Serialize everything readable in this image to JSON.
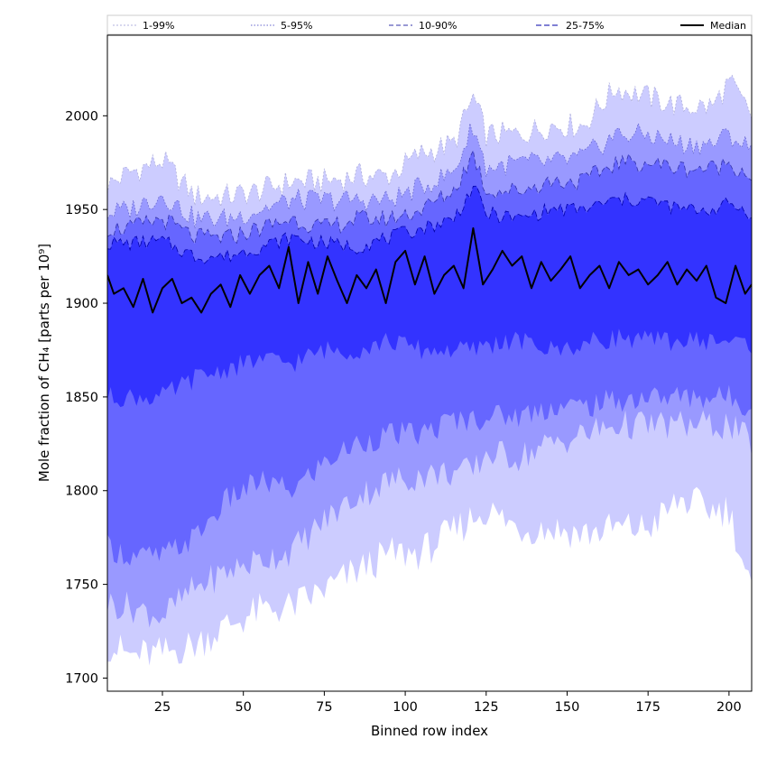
{
  "chart_data": {
    "type": "area",
    "title": "",
    "xlabel": "Binned row index",
    "ylabel": "Mole fraction of CH₄ [parts per 10⁹]",
    "xlim": [
      8,
      207
    ],
    "ylim": [
      1693,
      2043
    ],
    "x_ticks": [
      25,
      50,
      75,
      100,
      125,
      150,
      175,
      200
    ],
    "y_ticks": [
      1700,
      1750,
      1800,
      1850,
      1900,
      1950,
      2000
    ],
    "grid": false,
    "legend_position": "top, above plot",
    "x_knots": [
      8,
      15,
      25,
      35,
      45,
      55,
      65,
      75,
      85,
      95,
      105,
      115,
      121,
      125,
      135,
      145,
      155,
      165,
      175,
      185,
      195,
      200,
      207
    ],
    "bands": [
      {
        "name": "1-99%",
        "color": "#ccccff",
        "line_color": "#b0b0dd",
        "line_dash": "2,2",
        "lower": [
          1718,
          1712,
          1713,
          1718,
          1728,
          1736,
          1738,
          1747,
          1757,
          1766,
          1767,
          1778,
          1786,
          1790,
          1780,
          1780,
          1777,
          1780,
          1780,
          1795,
          1790,
          1790,
          1745
        ],
        "upper": [
          1963,
          1970,
          1976,
          1957,
          1957,
          1960,
          1965,
          1965,
          1968,
          1968,
          1980,
          1985,
          2010,
          1990,
          1990,
          1995,
          1995,
          2015,
          2010,
          2005,
          2005,
          2018,
          2000
        ]
      },
      {
        "name": "5-95%",
        "color": "#9999ff",
        "line_color": "#6666cc",
        "line_dash": "1.5,2",
        "lower": [
          1740,
          1738,
          1733,
          1748,
          1757,
          1763,
          1768,
          1784,
          1797,
          1805,
          1808,
          1810,
          1810,
          1820,
          1818,
          1825,
          1830,
          1835,
          1835,
          1835,
          1835,
          1835,
          1825
        ],
        "upper": [
          1948,
          1950,
          1958,
          1945,
          1945,
          1950,
          1955,
          1955,
          1955,
          1955,
          1962,
          1970,
          1995,
          1972,
          1975,
          1975,
          1978,
          1990,
          1990,
          1985,
          1985,
          1990,
          1982
        ]
      },
      {
        "name": "10-90%",
        "color": "#6666ff",
        "line_color": "#3333aa",
        "line_dash": "5,3",
        "lower": [
          1770,
          1765,
          1765,
          1775,
          1795,
          1805,
          1800,
          1815,
          1825,
          1830,
          1830,
          1838,
          1838,
          1840,
          1840,
          1845,
          1845,
          1848,
          1850,
          1850,
          1850,
          1850,
          1845
        ],
        "upper": [
          1940,
          1940,
          1945,
          1935,
          1935,
          1940,
          1945,
          1940,
          1945,
          1945,
          1950,
          1960,
          1980,
          1960,
          1960,
          1965,
          1965,
          1975,
          1975,
          1972,
          1972,
          1975,
          1968
        ]
      },
      {
        "name": "25-75%",
        "color": "#3333ff",
        "line_color": "#0000aa",
        "line_dash": "6,3",
        "lower": [
          1850,
          1850,
          1850,
          1860,
          1865,
          1870,
          1868,
          1875,
          1875,
          1880,
          1875,
          1875,
          1875,
          1878,
          1880,
          1875,
          1878,
          1882,
          1880,
          1880,
          1880,
          1880,
          1878
        ],
        "upper": [
          1932,
          1932,
          1933,
          1925,
          1925,
          1930,
          1935,
          1932,
          1930,
          1935,
          1940,
          1945,
          1962,
          1948,
          1945,
          1950,
          1950,
          1955,
          1955,
          1950,
          1950,
          1953,
          1948
        ]
      }
    ],
    "median": {
      "name": "Median",
      "color": "#000000",
      "x": [
        8,
        10,
        13,
        16,
        19,
        22,
        25,
        28,
        31,
        34,
        37,
        40,
        43,
        46,
        49,
        52,
        55,
        58,
        61,
        64,
        67,
        70,
        73,
        76,
        79,
        82,
        85,
        88,
        91,
        94,
        97,
        100,
        103,
        106,
        109,
        112,
        115,
        118,
        121,
        124,
        127,
        130,
        133,
        136,
        139,
        142,
        145,
        148,
        151,
        154,
        157,
        160,
        163,
        166,
        169,
        172,
        175,
        178,
        181,
        184,
        187,
        190,
        193,
        196,
        199,
        202,
        205,
        207
      ],
      "values": [
        1915,
        1905,
        1908,
        1898,
        1913,
        1895,
        1908,
        1913,
        1900,
        1903,
        1895,
        1905,
        1910,
        1898,
        1915,
        1905,
        1915,
        1920,
        1908,
        1930,
        1900,
        1922,
        1905,
        1925,
        1912,
        1900,
        1915,
        1908,
        1918,
        1900,
        1922,
        1928,
        1910,
        1925,
        1905,
        1915,
        1920,
        1908,
        1940,
        1910,
        1918,
        1928,
        1920,
        1925,
        1908,
        1922,
        1912,
        1918,
        1925,
        1908,
        1915,
        1920,
        1908,
        1922,
        1915,
        1918,
        1910,
        1915,
        1922,
        1910,
        1918,
        1912,
        1920,
        1903,
        1900,
        1920,
        1905,
        1910
      ]
    }
  }
}
